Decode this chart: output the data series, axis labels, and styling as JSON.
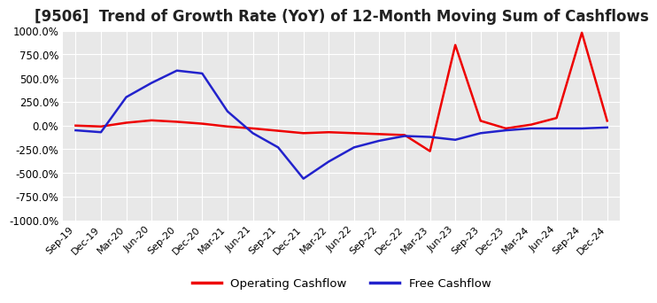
{
  "title": "[9506]  Trend of Growth Rate (YoY) of 12-Month Moving Sum of Cashflows",
  "title_fontsize": 12,
  "ylim": [
    -1000,
    1000
  ],
  "yticks": [
    -1000,
    -750,
    -500,
    -250,
    0,
    250,
    500,
    750,
    1000
  ],
  "yticklabels": [
    "-1000.0%",
    "-750.0%",
    "-500.0%",
    "-250.0%",
    "0.0%",
    "250.0%",
    "500.0%",
    "750.0%",
    "1000.0%"
  ],
  "operating_color": "#EE0000",
  "free_color": "#2222CC",
  "background_color": "#FFFFFF",
  "plot_bg_color": "#E8E8E8",
  "grid_color": "#FFFFFF",
  "legend_labels": [
    "Operating Cashflow",
    "Free Cashflow"
  ],
  "x_labels": [
    "Sep-19",
    "Dec-19",
    "Mar-20",
    "Jun-20",
    "Sep-20",
    "Dec-20",
    "Mar-21",
    "Jun-21",
    "Sep-21",
    "Dec-21",
    "Mar-22",
    "Jun-22",
    "Sep-22",
    "Dec-22",
    "Mar-23",
    "Jun-23",
    "Sep-23",
    "Dec-23",
    "Mar-24",
    "Jun-24",
    "Sep-24",
    "Dec-24"
  ],
  "operating_cashflow": [
    0,
    -10,
    30,
    55,
    40,
    20,
    -10,
    -30,
    -55,
    -80,
    -70,
    -80,
    -90,
    -100,
    -270,
    850,
    50,
    -30,
    10,
    80,
    980,
    50
  ],
  "free_cashflow": [
    -50,
    -70,
    300,
    450,
    580,
    550,
    150,
    -80,
    -230,
    -560,
    -380,
    -230,
    -160,
    -110,
    -120,
    -150,
    -80,
    -50,
    -30,
    -30,
    -30,
    -20
  ]
}
